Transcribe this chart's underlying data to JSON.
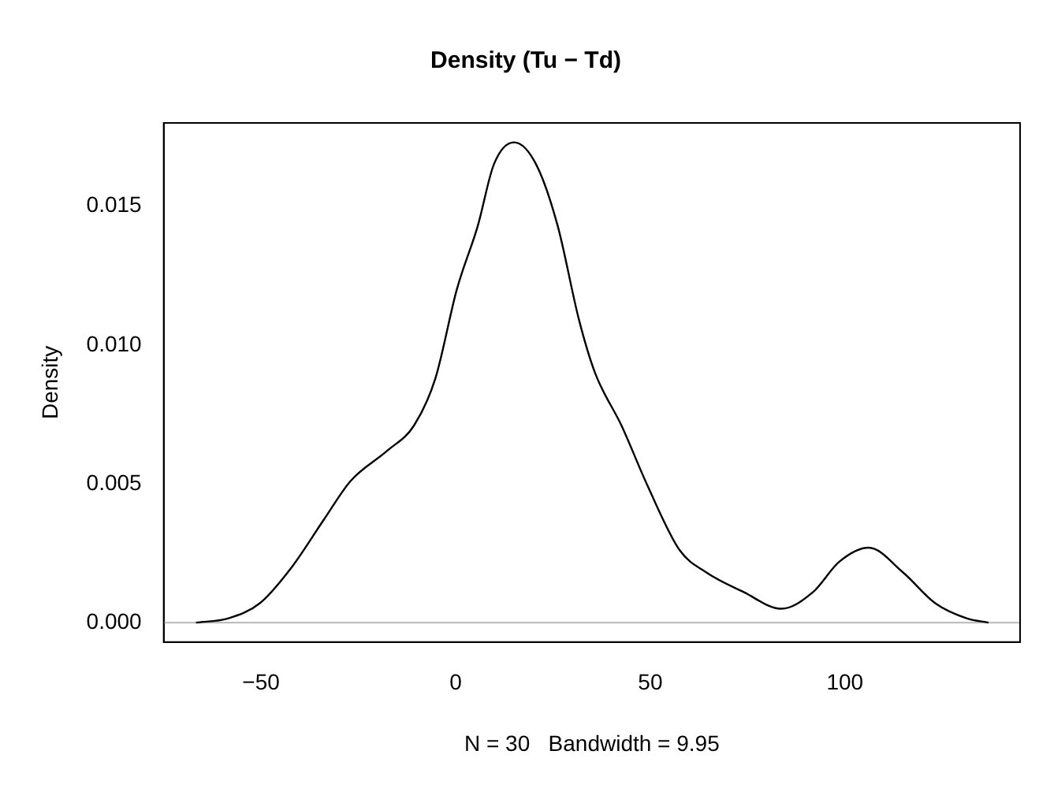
{
  "chart_data": {
    "type": "line",
    "title": "Density (Tu − Td)",
    "xlabel": "N = 30   Bandwidth = 9.95",
    "ylabel": "Density",
    "x": [
      -66.7,
      -58.5,
      -50.3,
      -42.1,
      -33.9,
      -27.0,
      -17.5,
      -10.7,
      -5.2,
      0.3,
      5.7,
      9.8,
      15.0,
      20.7,
      26.2,
      31.7,
      35.8,
      42.6,
      49.4,
      57.6,
      64.5,
      74.0,
      83.6,
      91.8,
      98.6,
      106.1,
      115.0,
      123.2,
      131.4,
      136.9
    ],
    "values": [
      0.0,
      0.00015,
      0.0007,
      0.002,
      0.0037,
      0.0051,
      0.0062,
      0.0071,
      0.0088,
      0.012,
      0.0143,
      0.0165,
      0.0173,
      0.0165,
      0.0143,
      0.0109,
      0.009,
      0.0071,
      0.0049,
      0.0026,
      0.0018,
      0.0011,
      0.0005,
      0.0011,
      0.0022,
      0.0027,
      0.0018,
      0.0007,
      0.00015,
      0.0
    ],
    "color": "#000000",
    "xlim": [
      -75,
      145
    ],
    "ylim": [
      -0.0007,
      0.018
    ],
    "xticks": [
      {
        "value": -50,
        "label": "−50"
      },
      0,
      50,
      100
    ],
    "yticks": [
      {
        "value": 0,
        "label": "0.000"
      },
      {
        "value": 0.005,
        "label": "0.005"
      },
      {
        "value": 0.01,
        "label": "0.010"
      },
      {
        "value": 0.015,
        "label": "0.015"
      }
    ],
    "ref_lines": [
      {
        "axis": "y",
        "value": 0,
        "color": "#bebebe"
      }
    ],
    "grid": false,
    "legend": false,
    "marker": "none",
    "line_style": "solid"
  }
}
